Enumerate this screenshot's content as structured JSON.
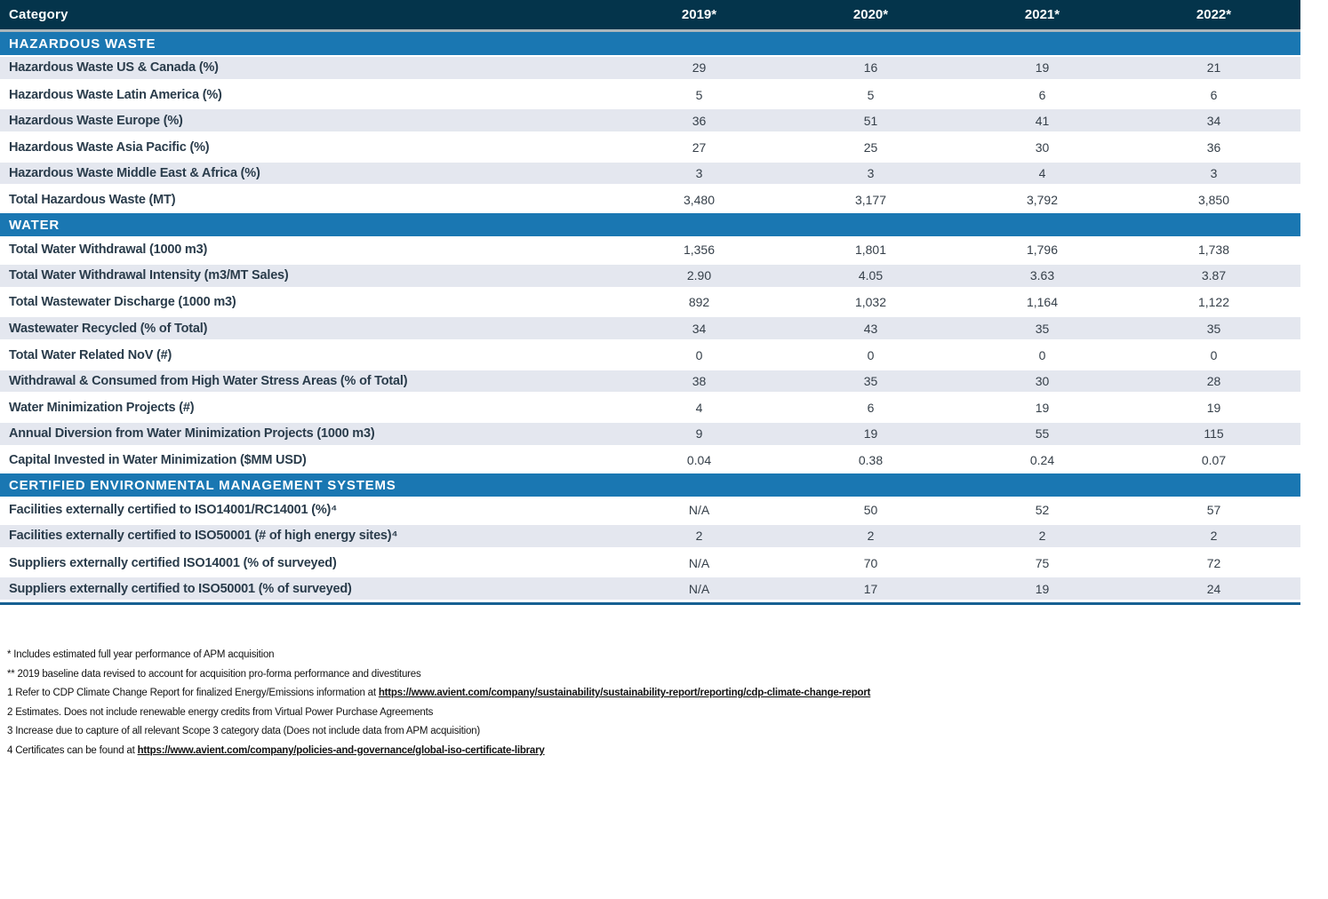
{
  "table": {
    "header": {
      "category": "Category",
      "years": [
        "2019*",
        "2020*",
        "2021*",
        "2022*"
      ]
    },
    "sections": [
      {
        "title": "HAZARDOUS WASTE",
        "rows": [
          {
            "label": "Hazardous Waste US & Canada (%)",
            "values": [
              "29",
              "16",
              "19",
              "21"
            ]
          },
          {
            "label": "Hazardous Waste Latin America (%)",
            "values": [
              "5",
              "5",
              "6",
              "6"
            ]
          },
          {
            "label": "Hazardous Waste Europe (%)",
            "values": [
              "36",
              "51",
              "41",
              "34"
            ]
          },
          {
            "label": "Hazardous Waste Asia Pacific (%)",
            "values": [
              "27",
              "25",
              "30",
              "36"
            ]
          },
          {
            "label": "Hazardous Waste Middle East & Africa (%)",
            "values": [
              "3",
              "3",
              "4",
              "3"
            ]
          },
          {
            "label": "Total Hazardous Waste (MT)",
            "values": [
              "3,480",
              "3,177",
              "3,792",
              "3,850"
            ]
          }
        ]
      },
      {
        "title": "WATER",
        "rows": [
          {
            "label": "Total Water Withdrawal (1000 m3)",
            "values": [
              "1,356",
              "1,801",
              "1,796",
              "1,738"
            ]
          },
          {
            "label": "Total Water Withdrawal Intensity (m3/MT Sales)",
            "values": [
              "2.90",
              "4.05",
              "3.63",
              "3.87"
            ]
          },
          {
            "label": "Total Wastewater Discharge (1000 m3)",
            "values": [
              "892",
              "1,032",
              "1,164",
              "1,122"
            ]
          },
          {
            "label": "Wastewater Recycled (% of Total)",
            "values": [
              "34",
              "43",
              "35",
              "35"
            ]
          },
          {
            "label": "Total Water Related NoV (#)",
            "values": [
              "0",
              "0",
              "0",
              "0"
            ]
          },
          {
            "label": "Withdrawal & Consumed from High Water Stress Areas (% of Total)",
            "values": [
              "38",
              "35",
              "30",
              "28"
            ]
          },
          {
            "label": "Water Minimization Projects (#)",
            "values": [
              "4",
              "6",
              "19",
              "19"
            ]
          },
          {
            "label": "Annual Diversion from Water Minimization Projects (1000 m3)",
            "values": [
              "9",
              "19",
              "55",
              "115"
            ]
          },
          {
            "label": "Capital Invested in Water Minimization ($MM USD)",
            "values": [
              "0.04",
              "0.38",
              "0.24",
              "0.07"
            ]
          }
        ]
      },
      {
        "title": "CERTIFIED ENVIRONMENTAL MANAGEMENT SYSTEMS",
        "rows": [
          {
            "label": "Facilities externally certified to ISO14001/RC14001 (%)⁴",
            "values": [
              "N/A",
              "50",
              "52",
              "57"
            ]
          },
          {
            "label": "Facilities externally certified to ISO50001 (# of high energy sites)⁴",
            "values": [
              "2",
              "2",
              "2",
              "2"
            ]
          },
          {
            "label": "Suppliers externally certified ISO14001 (% of surveyed)",
            "values": [
              "N/A",
              "70",
              "75",
              "72"
            ]
          },
          {
            "label": "Suppliers externally certified to ISO50001 (% of surveyed)",
            "values": [
              "N/A",
              "17",
              "19",
              "24"
            ]
          }
        ]
      }
    ],
    "colors": {
      "header_navy": "#04344b",
      "section_blue": "#1a77b2",
      "stripe": "#e4e7ef",
      "bottom_border": "#176092"
    }
  },
  "footnotes": {
    "line1": "* Includes estimated full year performance of APM acquisition",
    "line2": "** 2019 baseline data revised to account for acquisition pro-forma performance and divestitures",
    "line3_prefix": "1 Refer to CDP Climate Change Report for finalized Energy/Emissions information at ",
    "line3_link": "https://www.avient.com/company/sustainability/sustainability-report/reporting/cdp-climate-change-report",
    "line4": "2 Estimates. Does not include renewable energy credits from Virtual Power Purchase Agreements",
    "line5": "3 Increase due to capture of all relevant Scope 3 category data (Does not include data from APM acquisition)",
    "line6_prefix": "4 Certificates can be found at ",
    "line6_link": "https://www.avient.com/company/policies-and-governance/global-iso-certificate-library"
  }
}
